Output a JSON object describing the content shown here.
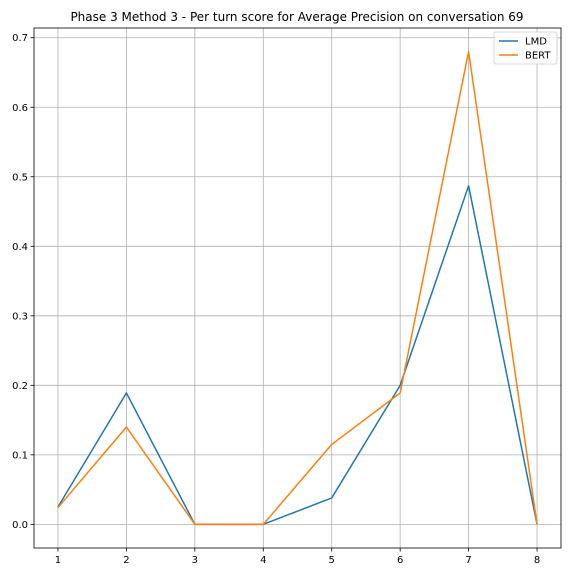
{
  "chart_data": {
    "type": "line",
    "title": "Phase 3 Method 3 - Per turn score for Average Precision on conversation 69",
    "xlabel": "",
    "ylabel": "",
    "x": [
      1,
      2,
      3,
      4,
      5,
      6,
      7,
      8
    ],
    "xlim": [
      0.65,
      8.35
    ],
    "ylim": [
      -0.034,
      0.714
    ],
    "xticks": [
      1,
      2,
      3,
      4,
      5,
      6,
      7,
      8
    ],
    "yticks": [
      0.0,
      0.1,
      0.2,
      0.3,
      0.4,
      0.5,
      0.6,
      0.7
    ],
    "ytick_labels": [
      "0.0",
      "0.1",
      "0.2",
      "0.3",
      "0.4",
      "0.5",
      "0.6",
      "0.7"
    ],
    "grid": true,
    "legend": "top-right",
    "series": [
      {
        "name": "LMD",
        "color": "#1f77b4",
        "values": [
          0.025,
          0.189,
          0.0,
          0.0,
          0.038,
          0.2,
          0.487,
          0.0
        ]
      },
      {
        "name": "BERT",
        "color": "#ff7f0e",
        "values": [
          0.024,
          0.14,
          0.0,
          0.0,
          0.115,
          0.189,
          0.68,
          0.0
        ]
      }
    ]
  }
}
